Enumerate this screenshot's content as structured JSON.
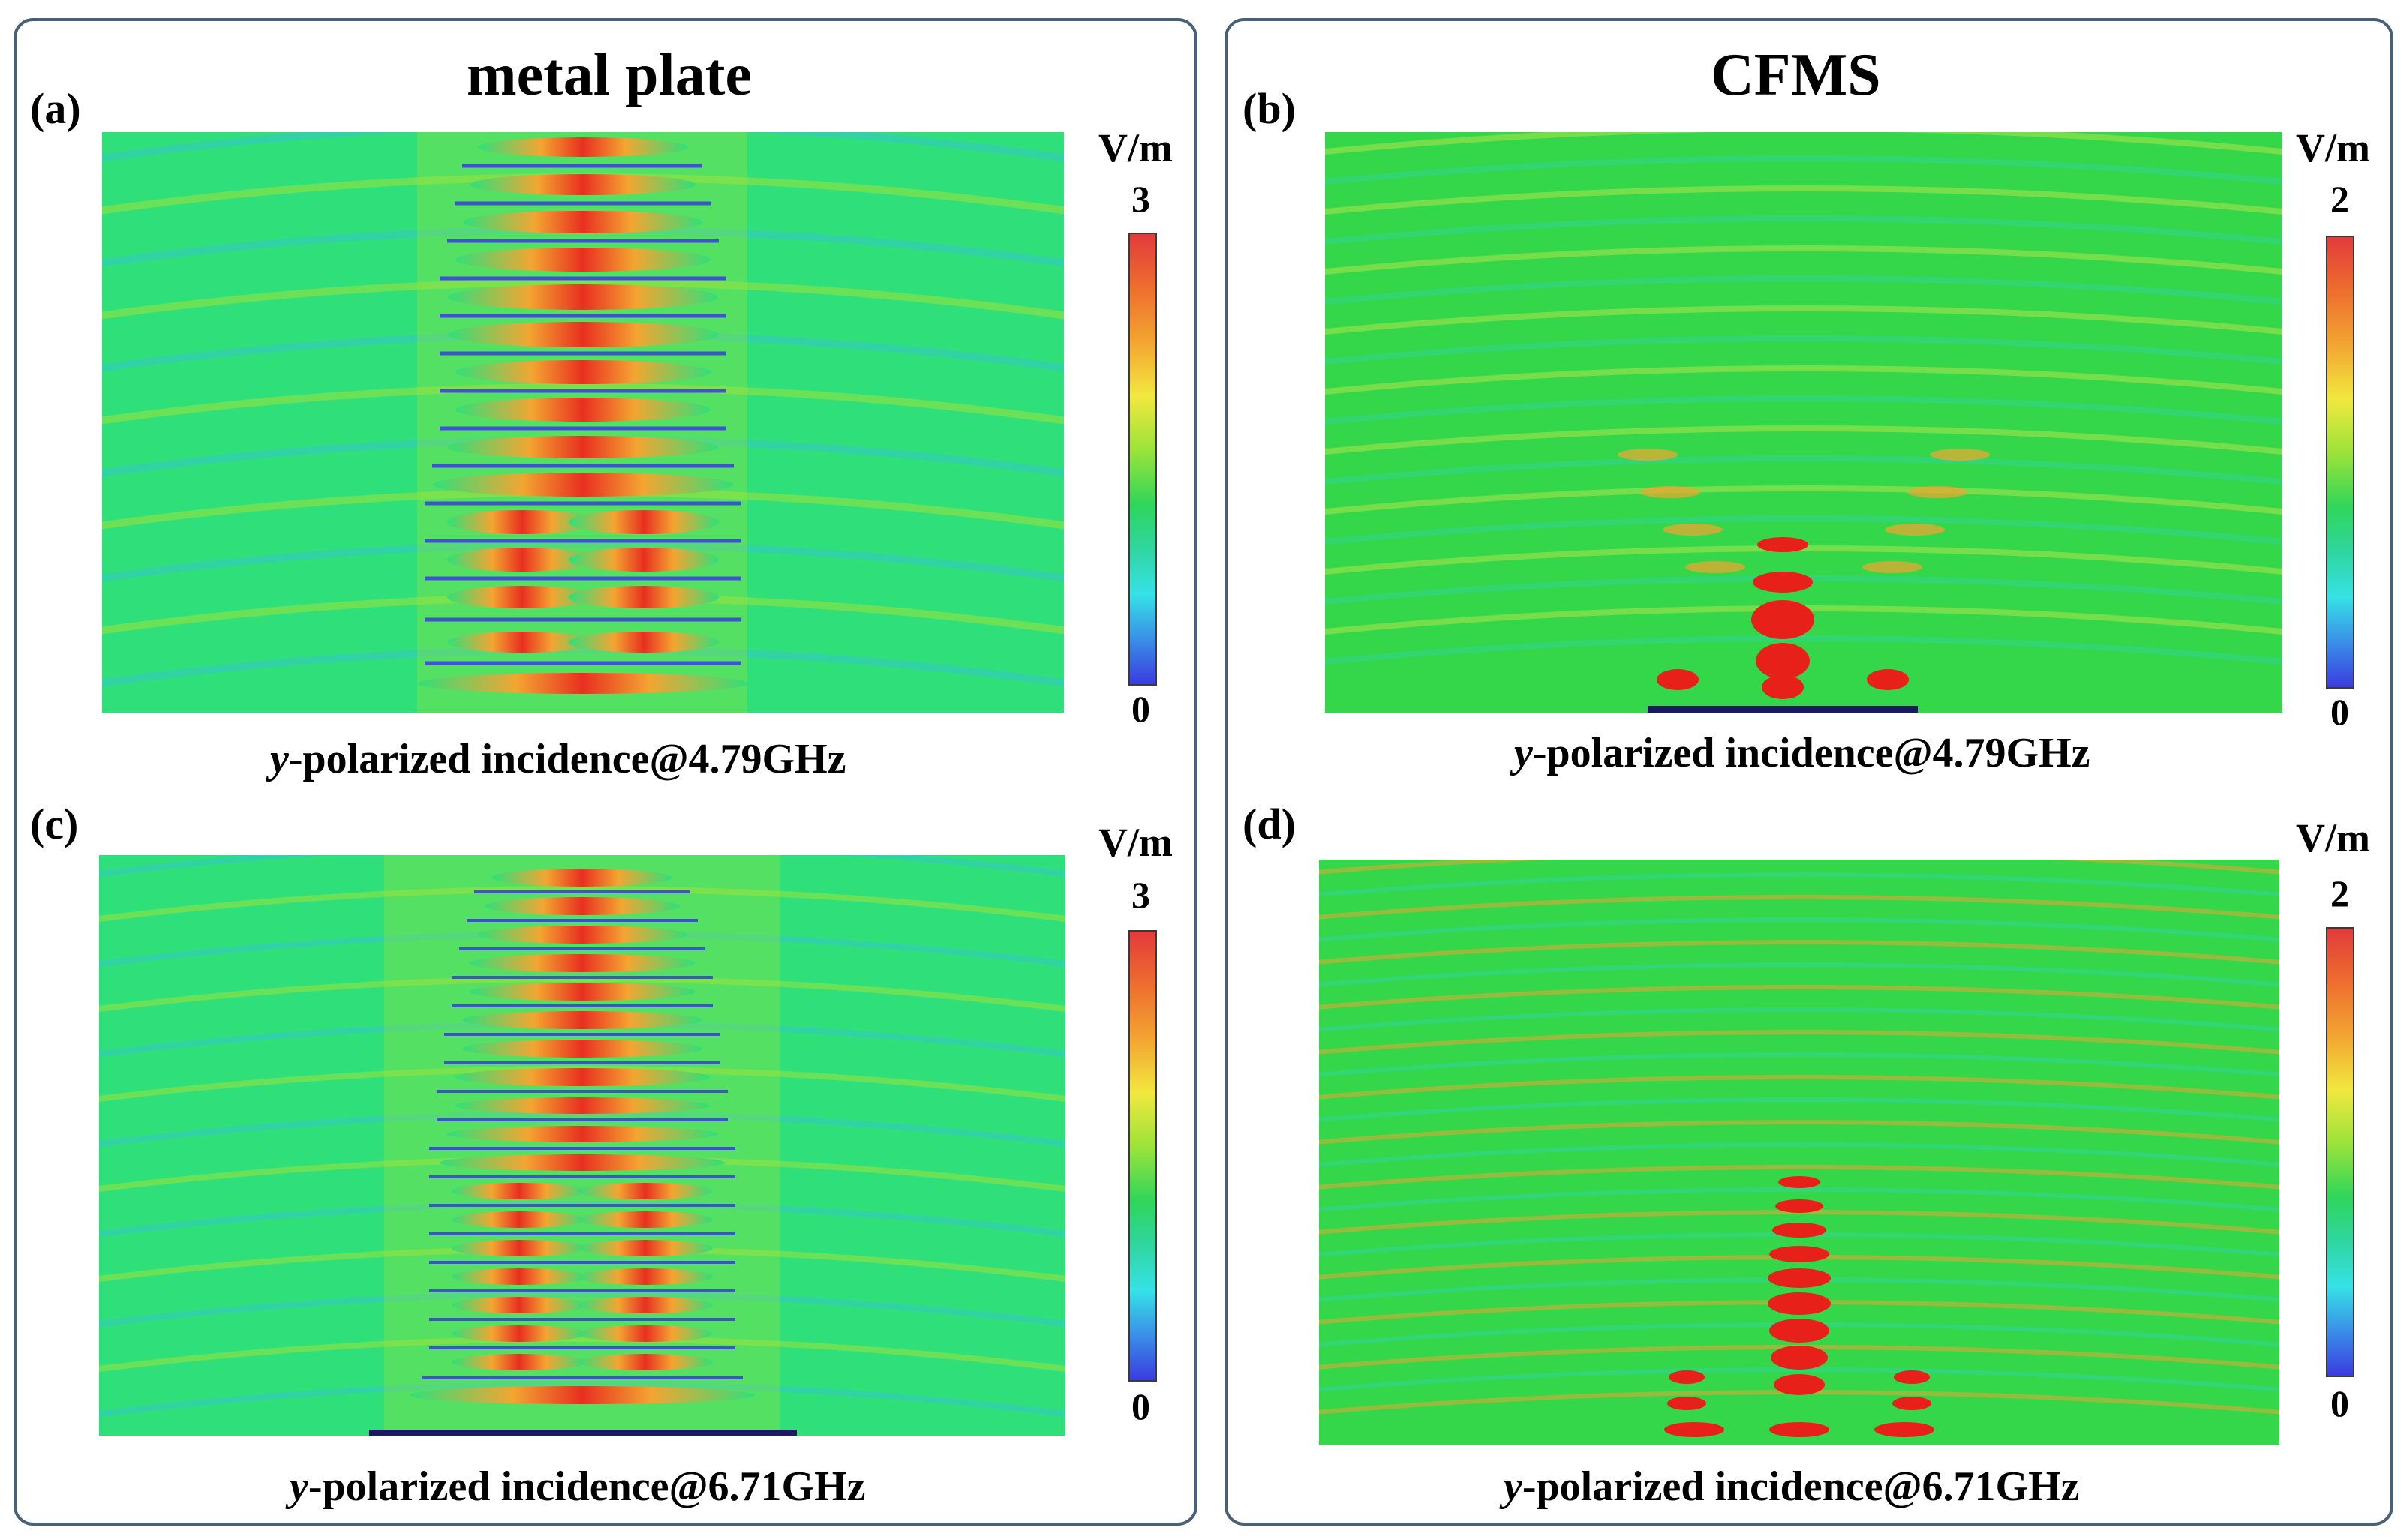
{
  "figure": {
    "columns": [
      {
        "title": "metal plate"
      },
      {
        "title": "CFMS"
      }
    ],
    "panels": [
      {
        "label": "(a)",
        "caption_var": "y",
        "caption_rest": "-polarized incidence@4.79GHz",
        "unit": "V/m",
        "cbar_max": "3",
        "cbar_min": "0"
      },
      {
        "label": "(b)",
        "caption_var": "y",
        "caption_rest": "-polarized incidence@4.79GHz",
        "unit": "V/m",
        "cbar_max": "2",
        "cbar_min": "0"
      },
      {
        "label": "(c)",
        "caption_var": "y",
        "caption_rest": "-polarized incidence@6.71GHz",
        "unit": "V/m",
        "cbar_max": "3",
        "cbar_min": "0"
      },
      {
        "label": "(d)",
        "caption_var": "y",
        "caption_rest": "-polarized incidence@6.71GHz",
        "unit": "V/m",
        "cbar_max": "2",
        "cbar_min": "0"
      }
    ],
    "colormap": [
      "#3a3ce0",
      "#35e2e6",
      "#2fd65a",
      "#f1e83e",
      "#e23b3b"
    ]
  }
}
